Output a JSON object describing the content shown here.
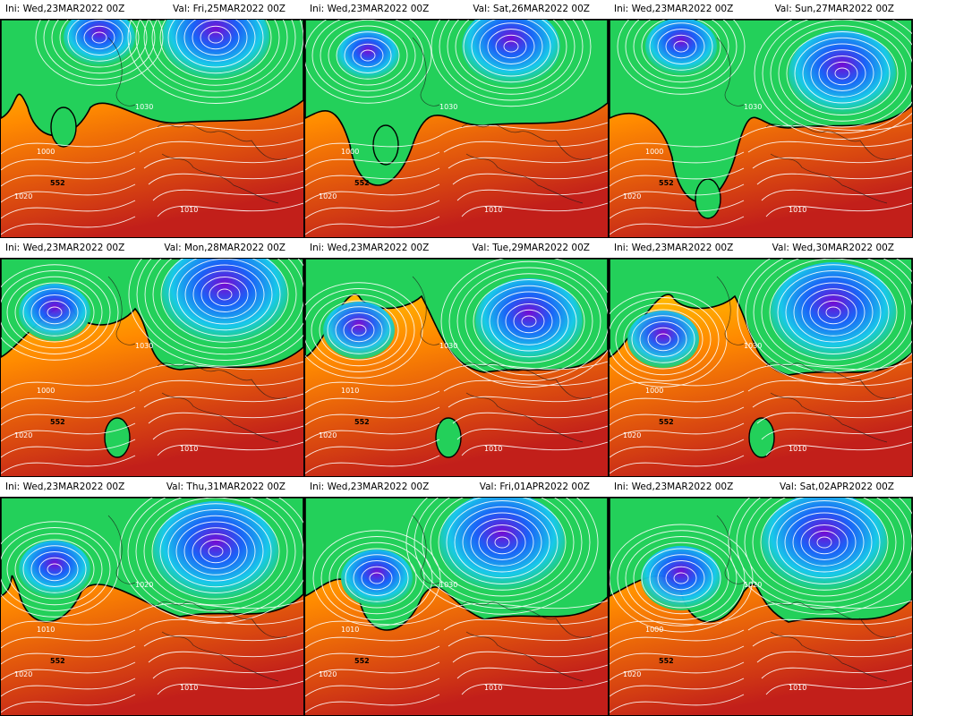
{
  "init_label": "Ini:",
  "valid_label": "Val:",
  "init_time": "Wed,23MAR2022  00Z",
  "colors": {
    "deep_low": "#7a00d8",
    "low": "#1a5cff",
    "mid_low": "#18c8f0",
    "neutral": "#23d05a",
    "warm": "#ffe100",
    "hot": "#ff8a00",
    "very_hot": "#c21f1a",
    "isobar": "#ffffff",
    "thickness_552": "#000000"
  },
  "panels": [
    {
      "valid": "Fri,25MAR2022  00Z",
      "labels": {
        "p1000": "1000",
        "p1010": "1010",
        "p1020": "1020",
        "p1030": "1030",
        "h552": "552"
      }
    },
    {
      "valid": "Sat,26MAR2022  00Z",
      "labels": {
        "p1000": "1000",
        "p1010": "1010",
        "p1020": "1020",
        "p1030": "1030",
        "h552": "552"
      }
    },
    {
      "valid": "Sun,27MAR2022  00Z",
      "labels": {
        "p1000": "1000",
        "p1010": "1010",
        "p1020": "1020",
        "p1030": "1030",
        "h552": "552"
      }
    },
    {
      "valid": "Mon,28MAR2022  00Z",
      "labels": {
        "p1000": "1000",
        "p1010": "1010",
        "p1020": "1020",
        "p1030": "1030",
        "h552": "552"
      }
    },
    {
      "valid": "Tue,29MAR2022  00Z",
      "labels": {
        "p1000": "1010",
        "p1010": "1010",
        "p1020": "1020",
        "p1030": "1030",
        "h552": "552"
      }
    },
    {
      "valid": "Wed,30MAR2022  00Z",
      "labels": {
        "p1000": "1000",
        "p1010": "1010",
        "p1020": "1020",
        "p1030": "1030",
        "h552": "552"
      }
    },
    {
      "valid": "Thu,31MAR2022  00Z",
      "labels": {
        "p1000": "1010",
        "p1010": "1010",
        "p1020": "1020",
        "p1030": "1020",
        "h552": "552"
      }
    },
    {
      "valid": "Fri,01APR2022  00Z",
      "labels": {
        "p1000": "1010",
        "p1010": "1010",
        "p1020": "1020",
        "p1030": "1030",
        "h552": "552"
      }
    },
    {
      "valid": "Sat,02APR2022  00Z",
      "labels": {
        "p1000": "1000",
        "p1010": "1010",
        "p1020": "1020",
        "p1030": "1020",
        "h552": "552"
      }
    }
  ]
}
